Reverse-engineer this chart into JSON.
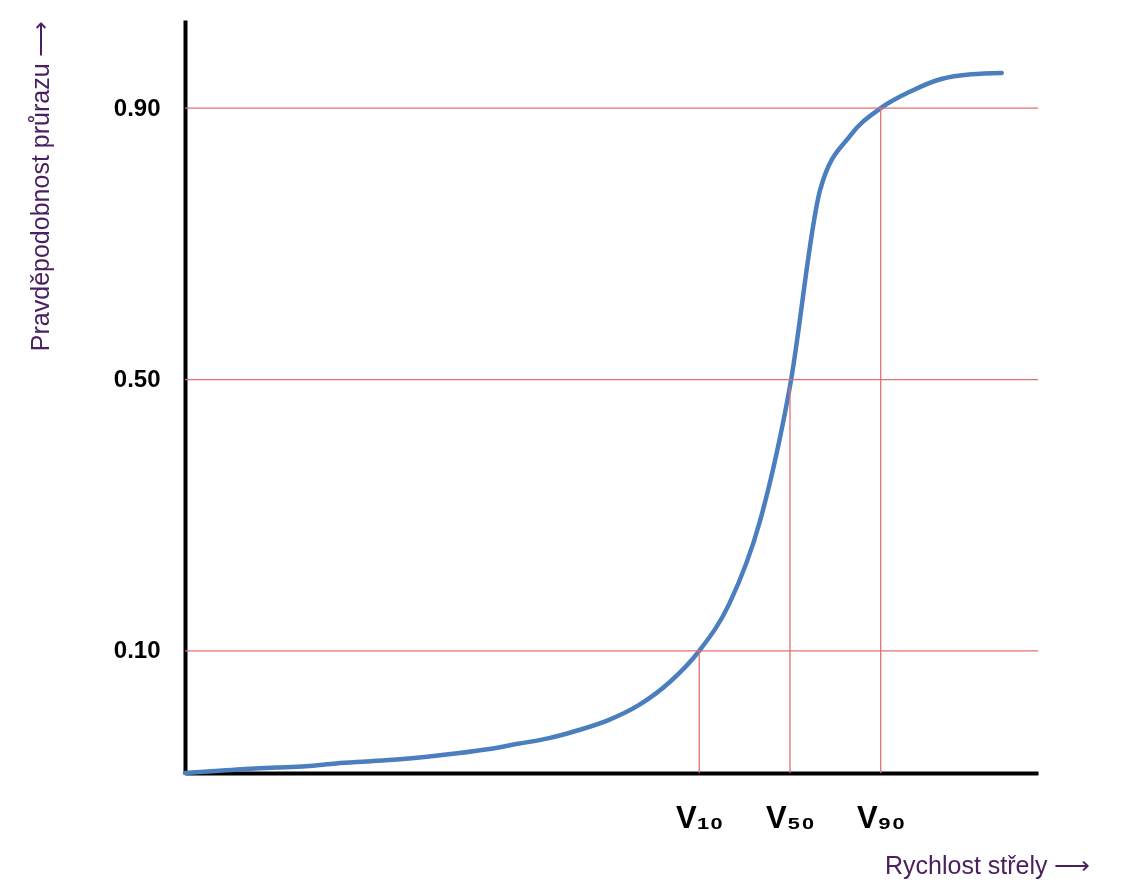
{
  "chart_data": {
    "type": "line",
    "xlabel": "Rychlost střely ⟶",
    "ylabel": "Pravděpodobnost průrazu ⟶",
    "categories": [
      null,
      null,
      null,
      null,
      null,
      null,
      null,
      null,
      null,
      null,
      null,
      null,
      null,
      null,
      null,
      null,
      null,
      "V₁₀",
      null,
      null,
      "V₅₀",
      null,
      null,
      "V₉₀",
      null,
      null,
      null,
      null
    ],
    "series": [
      {
        "color": "#4a7ebf",
        "values": [
          -0.08,
          -0.077,
          -0.074,
          -0.072,
          -0.07,
          -0.066,
          -0.063,
          -0.06,
          -0.056,
          -0.051,
          -0.045,
          -0.037,
          -0.029,
          -0.017,
          -0.002,
          0.02,
          0.053,
          0.1,
          0.17,
          0.29,
          0.49,
          0.78,
          0.86,
          0.9,
          0.925,
          0.943,
          0.95,
          0.952
        ]
      }
    ],
    "ylim": [
      -0.08,
      1.03
    ],
    "yticks": [
      {
        "value": 0.1,
        "label": "0.10"
      },
      {
        "value": 0.5,
        "label": "0.50"
      },
      {
        "value": 0.9,
        "label": "0.90"
      }
    ],
    "ref_lines": [
      {
        "axis": "y",
        "value": 0.1,
        "color": "#e07070"
      },
      {
        "axis": "y",
        "value": 0.5,
        "color": "#e07070"
      },
      {
        "axis": "y",
        "value": 0.9,
        "color": "#e07070"
      },
      {
        "axis": "x",
        "value": "V₁₀",
        "color": "#e07070"
      },
      {
        "axis": "x",
        "value": "V₅₀",
        "color": "#e07070"
      },
      {
        "axis": "x",
        "value": "V₉₀",
        "color": "#e07070"
      }
    ],
    "grid": false,
    "marker": "none",
    "line_style": "solid"
  }
}
